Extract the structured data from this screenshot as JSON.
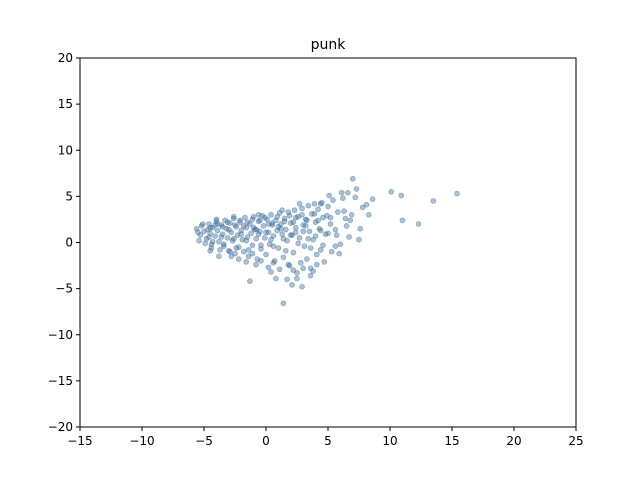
{
  "chart_data": {
    "type": "scatter",
    "title": "punk",
    "xlabel": "",
    "ylabel": "",
    "xlim": [
      -15,
      25
    ],
    "ylim": [
      -20,
      20
    ],
    "xticks": [
      -15,
      -10,
      -5,
      0,
      5,
      10,
      15,
      20,
      25
    ],
    "yticks": [
      -20,
      -15,
      -10,
      -5,
      0,
      5,
      10,
      15,
      20
    ],
    "grid": false,
    "point_color": "#2f6595",
    "point_alpha": 0.4,
    "series": [
      {
        "name": "",
        "points": [
          [
            -5.2,
            1.8
          ],
          [
            -5.0,
            1.2
          ],
          [
            -4.8,
            0.4
          ],
          [
            -4.6,
            2.0
          ],
          [
            -4.5,
            1.0
          ],
          [
            -4.4,
            -0.2
          ],
          [
            -4.3,
            1.6
          ],
          [
            -4.1,
            0.7
          ],
          [
            -4.0,
            2.3
          ],
          [
            -3.9,
            1.3
          ],
          [
            -3.8,
            0.1
          ],
          [
            -3.6,
            1.9
          ],
          [
            -3.5,
            0.9
          ],
          [
            -3.4,
            -0.4
          ],
          [
            -3.3,
            2.4
          ],
          [
            -3.2,
            1.5
          ],
          [
            -3.1,
            0.5
          ],
          [
            -3.0,
            -0.9
          ],
          [
            -2.9,
            2.1
          ],
          [
            -2.8,
            1.1
          ],
          [
            -2.7,
            0.2
          ],
          [
            -2.6,
            2.6
          ],
          [
            -2.5,
            -1.2
          ],
          [
            -2.4,
            1.7
          ],
          [
            -2.3,
            0.8
          ],
          [
            -2.2,
            -0.5
          ],
          [
            -2.1,
            2.2
          ],
          [
            -2.0,
            1.3
          ],
          [
            -1.9,
            0.3
          ],
          [
            -1.8,
            -1.0
          ],
          [
            -1.7,
            2.7
          ],
          [
            -1.6,
            1.6
          ],
          [
            -1.5,
            0.6
          ],
          [
            -1.4,
            -1.5
          ],
          [
            -1.3,
            2.0
          ],
          [
            -1.2,
            1.0
          ],
          [
            -1.1,
            -0.3
          ],
          [
            -1.0,
            2.8
          ],
          [
            -0.9,
            1.4
          ],
          [
            -0.8,
            0.4
          ],
          [
            -0.7,
            -1.8
          ],
          [
            -0.6,
            2.3
          ],
          [
            -0.5,
            1.2
          ],
          [
            -0.4,
            -0.7
          ],
          [
            -0.3,
            2.9
          ],
          [
            -0.2,
            1.8
          ],
          [
            -0.1,
            0.5
          ],
          [
            0.0,
            -1.3
          ],
          [
            0.1,
            2.5
          ],
          [
            0.2,
            1.1
          ],
          [
            0.3,
            -0.2
          ],
          [
            0.4,
            3.0
          ],
          [
            0.5,
            1.9
          ],
          [
            0.6,
            0.7
          ],
          [
            0.7,
            -2.0
          ],
          [
            0.8,
            2.4
          ],
          [
            0.9,
            1.3
          ],
          [
            1.0,
            -0.6
          ],
          [
            1.1,
            3.2
          ],
          [
            1.2,
            2.0
          ],
          [
            1.3,
            0.9
          ],
          [
            1.4,
            -1.6
          ],
          [
            1.5,
            2.6
          ],
          [
            1.6,
            1.4
          ],
          [
            1.7,
            0.2
          ],
          [
            1.8,
            3.3
          ],
          [
            1.9,
            -2.5
          ],
          [
            2.0,
            2.1
          ],
          [
            2.1,
            0.8
          ],
          [
            2.2,
            -1.1
          ],
          [
            2.3,
            3.5
          ],
          [
            2.4,
            1.6
          ],
          [
            2.5,
            -3.3
          ],
          [
            2.6,
            2.8
          ],
          [
            2.7,
            0.5
          ],
          [
            2.8,
            -2.2
          ],
          [
            2.9,
            3.7
          ],
          [
            3.0,
            1.9
          ],
          [
            3.1,
            -0.4
          ],
          [
            3.2,
            2.5
          ],
          [
            3.3,
            -1.8
          ],
          [
            3.4,
            4.0
          ],
          [
            3.5,
            1.2
          ],
          [
            3.6,
            -2.8
          ],
          [
            3.7,
            3.1
          ],
          [
            3.8,
            0.3
          ],
          [
            3.9,
            4.2
          ],
          [
            4.0,
            2.2
          ],
          [
            4.1,
            -1.3
          ],
          [
            4.2,
            3.6
          ],
          [
            4.3,
            1.5
          ],
          [
            4.4,
            -0.8
          ],
          [
            4.5,
            4.3
          ],
          [
            4.6,
            2.7
          ],
          [
            4.8,
            0.9
          ],
          [
            5.0,
            3.9
          ],
          [
            5.2,
            2.0
          ],
          [
            5.4,
            4.6
          ],
          [
            5.6,
            1.4
          ],
          [
            5.8,
            3.3
          ],
          [
            6.0,
            -0.2
          ],
          [
            6.2,
            4.8
          ],
          [
            6.4,
            2.6
          ],
          [
            6.6,
            5.4
          ],
          [
            6.9,
            3.0
          ],
          [
            7.2,
            4.9
          ],
          [
            7.5,
            0.3
          ],
          [
            7.8,
            3.8
          ],
          [
            8.1,
            4.1
          ],
          [
            8.6,
            4.7
          ],
          [
            10.1,
            5.5
          ],
          [
            10.9,
            5.1
          ],
          [
            11.0,
            2.4
          ],
          [
            12.3,
            2.0
          ],
          [
            13.5,
            4.5
          ],
          [
            15.4,
            5.3
          ],
          [
            1.4,
            -6.6
          ],
          [
            2.9,
            -4.8
          ],
          [
            0.8,
            -3.9
          ],
          [
            -1.3,
            -4.2
          ],
          [
            2.1,
            -4.6
          ],
          [
            3.6,
            -3.6
          ],
          [
            4.1,
            -2.4
          ],
          [
            5.3,
            -1.0
          ],
          [
            5.7,
            0.8
          ],
          [
            6.5,
            1.8
          ],
          [
            7.0,
            6.9
          ],
          [
            7.3,
            5.8
          ],
          [
            6.1,
            5.4
          ],
          [
            5.1,
            5.1
          ],
          [
            4.4,
            4.2
          ],
          [
            2.7,
            4.2
          ],
          [
            1.3,
            3.5
          ],
          [
            -0.6,
            3.0
          ],
          [
            -2.6,
            2.8
          ],
          [
            -4.0,
            2.5
          ],
          [
            -5.1,
            2.0
          ],
          [
            -4.9,
            -0.1
          ],
          [
            -3.7,
            -0.8
          ],
          [
            -2.2,
            -1.8
          ],
          [
            -1.1,
            -1.2
          ],
          [
            0.6,
            -2.2
          ],
          [
            1.1,
            -2.9
          ],
          [
            1.8,
            -2.4
          ],
          [
            3.0,
            -2.8
          ],
          [
            2.2,
            -3.0
          ],
          [
            0.2,
            -2.7
          ],
          [
            -0.8,
            -2.4
          ],
          [
            -2.8,
            -1.5
          ],
          [
            -4.3,
            0.1
          ],
          [
            -5.3,
            0.8
          ],
          [
            -4.7,
            1.4
          ],
          [
            -3.9,
            2.0
          ],
          [
            -3.0,
            1.4
          ],
          [
            -2.0,
            0.9
          ],
          [
            -1.0,
            1.6
          ],
          [
            0.0,
            1.1
          ],
          [
            1.0,
            1.7
          ],
          [
            2.0,
            0.8
          ],
          [
            3.0,
            1.2
          ],
          [
            4.0,
            0.7
          ],
          [
            5.0,
            1.0
          ],
          [
            3.3,
            2.4
          ],
          [
            2.4,
            2.7
          ],
          [
            1.5,
            2.3
          ],
          [
            0.5,
            2.1
          ],
          [
            -0.5,
            2.4
          ],
          [
            -1.5,
            2.2
          ],
          [
            -2.5,
            1.9
          ],
          [
            -3.5,
            1.7
          ],
          [
            -4.5,
            1.6
          ],
          [
            -5.5,
            1.1
          ],
          [
            -5.4,
            0.2
          ],
          [
            -4.4,
            -0.6
          ],
          [
            -3.4,
            -0.2
          ],
          [
            -2.4,
            -0.6
          ],
          [
            -1.4,
            -0.8
          ],
          [
            -0.4,
            -0.3
          ],
          [
            0.6,
            -0.4
          ],
          [
            1.6,
            -0.9
          ],
          [
            2.6,
            -0.1
          ],
          [
            3.6,
            -0.6
          ],
          [
            4.6,
            -0.3
          ],
          [
            5.6,
            -0.4
          ],
          [
            4.9,
            2.9
          ],
          [
            3.9,
            3.1
          ],
          [
            2.9,
            3.0
          ],
          [
            1.9,
            2.9
          ],
          [
            0.9,
            2.8
          ],
          [
            -0.1,
            2.7
          ],
          [
            -1.1,
            2.5
          ],
          [
            -2.1,
            2.4
          ],
          [
            -3.1,
            2.2
          ],
          [
            -4.1,
            1.9
          ],
          [
            -2.6,
            0.4
          ],
          [
            -1.6,
            0.2
          ],
          [
            -0.6,
            0.9
          ],
          [
            0.4,
            0.3
          ],
          [
            1.4,
            0.4
          ],
          [
            2.4,
            1.1
          ],
          [
            3.4,
            0.4
          ],
          [
            4.4,
            1.3
          ],
          [
            -3.6,
            0.6
          ],
          [
            -4.6,
            0.6
          ],
          [
            -5.6,
            1.5
          ],
          [
            -1.8,
            1.8
          ],
          [
            -0.8,
            1.4
          ],
          [
            0.2,
            2.0
          ],
          [
            1.2,
            1.5
          ],
          [
            2.2,
            2.2
          ],
          [
            3.2,
            1.8
          ],
          [
            4.2,
            2.4
          ],
          [
            5.2,
            2.7
          ],
          [
            6.3,
            3.4
          ],
          [
            6.8,
            2.4
          ],
          [
            7.6,
            1.5
          ],
          [
            8.3,
            3.0
          ],
          [
            6.7,
            0.6
          ],
          [
            5.9,
            -1.2
          ],
          [
            4.7,
            -2.1
          ],
          [
            3.8,
            -3.1
          ],
          [
            2.5,
            -3.9
          ],
          [
            1.7,
            -4.0
          ],
          [
            0.4,
            -3.2
          ],
          [
            -0.4,
            -2.0
          ],
          [
            -1.6,
            -2.1
          ],
          [
            -2.9,
            -1.0
          ],
          [
            -3.8,
            -1.5
          ],
          [
            -4.5,
            -0.9
          ]
        ]
      }
    ]
  }
}
